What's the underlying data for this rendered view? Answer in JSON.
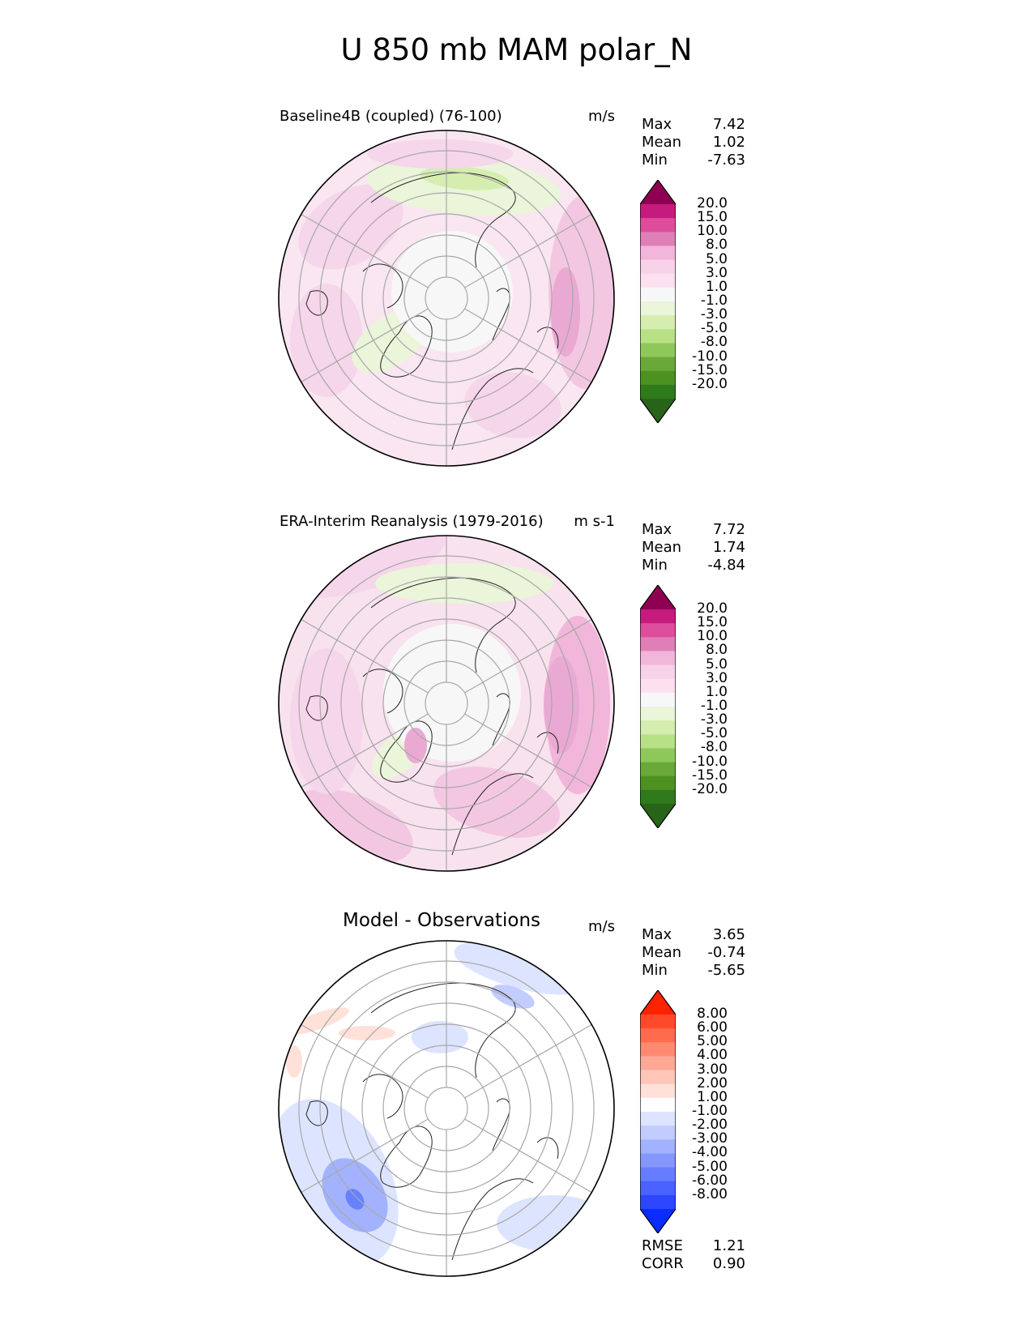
{
  "title": "U 850 mb MAM polar_N",
  "panels": [
    {
      "title": "Baseline4B (coupled) (76-100)",
      "units": "m/s",
      "stats": [
        {
          "label": "Max",
          "value": "7.42"
        },
        {
          "label": "Mean",
          "value": "1.02"
        },
        {
          "label": "Min",
          "value": "-7.63"
        }
      ],
      "colorbar": {
        "labels": [
          "20.0",
          "15.0",
          "10.0",
          "8.0",
          "5.0",
          "3.0",
          "1.0",
          "-1.0",
          "-3.0",
          "-5.0",
          "-8.0",
          "-10.0",
          "-15.0",
          "-20.0"
        ],
        "colors": [
          "#8e0152",
          "#c51b7d",
          "#de4d9b",
          "#e07fb7",
          "#f1b6da",
          "#f7d2e8",
          "#fde0ef",
          "#f7f7f7",
          "#eaf5d9",
          "#d5eeb0",
          "#b8e186",
          "#8fc85a",
          "#6aa83a",
          "#4d9221",
          "#2f7a1c",
          "#276419"
        ]
      }
    },
    {
      "title": "ERA-Interim Reanalysis (1979-2016)",
      "units": "m s-1",
      "stats": [
        {
          "label": "Max",
          "value": "7.72"
        },
        {
          "label": "Mean",
          "value": "1.74"
        },
        {
          "label": "Min",
          "value": "-4.84"
        }
      ],
      "colorbar": {
        "labels": [
          "20.0",
          "15.0",
          "10.0",
          "8.0",
          "5.0",
          "3.0",
          "1.0",
          "-1.0",
          "-3.0",
          "-5.0",
          "-8.0",
          "-10.0",
          "-15.0",
          "-20.0"
        ],
        "colors": [
          "#8e0152",
          "#c51b7d",
          "#de4d9b",
          "#e07fb7",
          "#f1b6da",
          "#f7d2e8",
          "#fde0ef",
          "#f7f7f7",
          "#eaf5d9",
          "#d5eeb0",
          "#b8e186",
          "#8fc85a",
          "#6aa83a",
          "#4d9221",
          "#2f7a1c",
          "#276419"
        ]
      }
    },
    {
      "title": "Model - Observations",
      "units": "m/s",
      "stats": [
        {
          "label": "Max",
          "value": "3.65"
        },
        {
          "label": "Mean",
          "value": "-0.74"
        },
        {
          "label": "Min",
          "value": "-5.65"
        }
      ],
      "colorbar": {
        "labels": [
          "8.00",
          "6.00",
          "5.00",
          "4.00",
          "3.00",
          "2.00",
          "1.00",
          "-1.00",
          "-2.00",
          "-3.00",
          "-4.00",
          "-5.00",
          "-6.00",
          "-8.00"
        ],
        "colors": [
          "#ff2200",
          "#ff4a2a",
          "#ff6b4d",
          "#ff8a72",
          "#ffa896",
          "#ffc6b8",
          "#ffe1d9",
          "#ffffff",
          "#dde4ff",
          "#c2ccff",
          "#a3b2ff",
          "#8597ff",
          "#667dff",
          "#4a62ff",
          "#2d47ff",
          "#0a2cff"
        ]
      },
      "extra_stats": [
        {
          "label": "RMSE",
          "value": "1.21"
        },
        {
          "label": "CORR",
          "value": "0.90"
        }
      ]
    }
  ],
  "chart_data": [
    {
      "type": "heatmap",
      "title": "Baseline4B (coupled) (76-100)",
      "units": "m/s",
      "projection": "north polar stereographic",
      "field": "U 850 mb MAM",
      "max": 7.42,
      "mean": 1.02,
      "min": -7.63,
      "levels": [
        -20,
        -15,
        -10,
        -8,
        -5,
        -3,
        -1,
        1,
        3,
        5,
        8,
        10,
        15,
        20
      ]
    },
    {
      "type": "heatmap",
      "title": "ERA-Interim Reanalysis (1979-2016)",
      "units": "m s-1",
      "projection": "north polar stereographic",
      "field": "U 850 mb MAM",
      "max": 7.72,
      "mean": 1.74,
      "min": -4.84,
      "levels": [
        -20,
        -15,
        -10,
        -8,
        -5,
        -3,
        -1,
        1,
        3,
        5,
        8,
        10,
        15,
        20
      ]
    },
    {
      "type": "heatmap",
      "title": "Model - Observations",
      "units": "m/s",
      "projection": "north polar stereographic",
      "field": "U 850 mb MAM difference",
      "max": 3.65,
      "mean": -0.74,
      "min": -5.65,
      "rmse": 1.21,
      "corr": 0.9,
      "levels": [
        -8,
        -6,
        -5,
        -4,
        -3,
        -2,
        -1,
        1,
        2,
        3,
        4,
        5,
        6,
        8
      ]
    }
  ]
}
